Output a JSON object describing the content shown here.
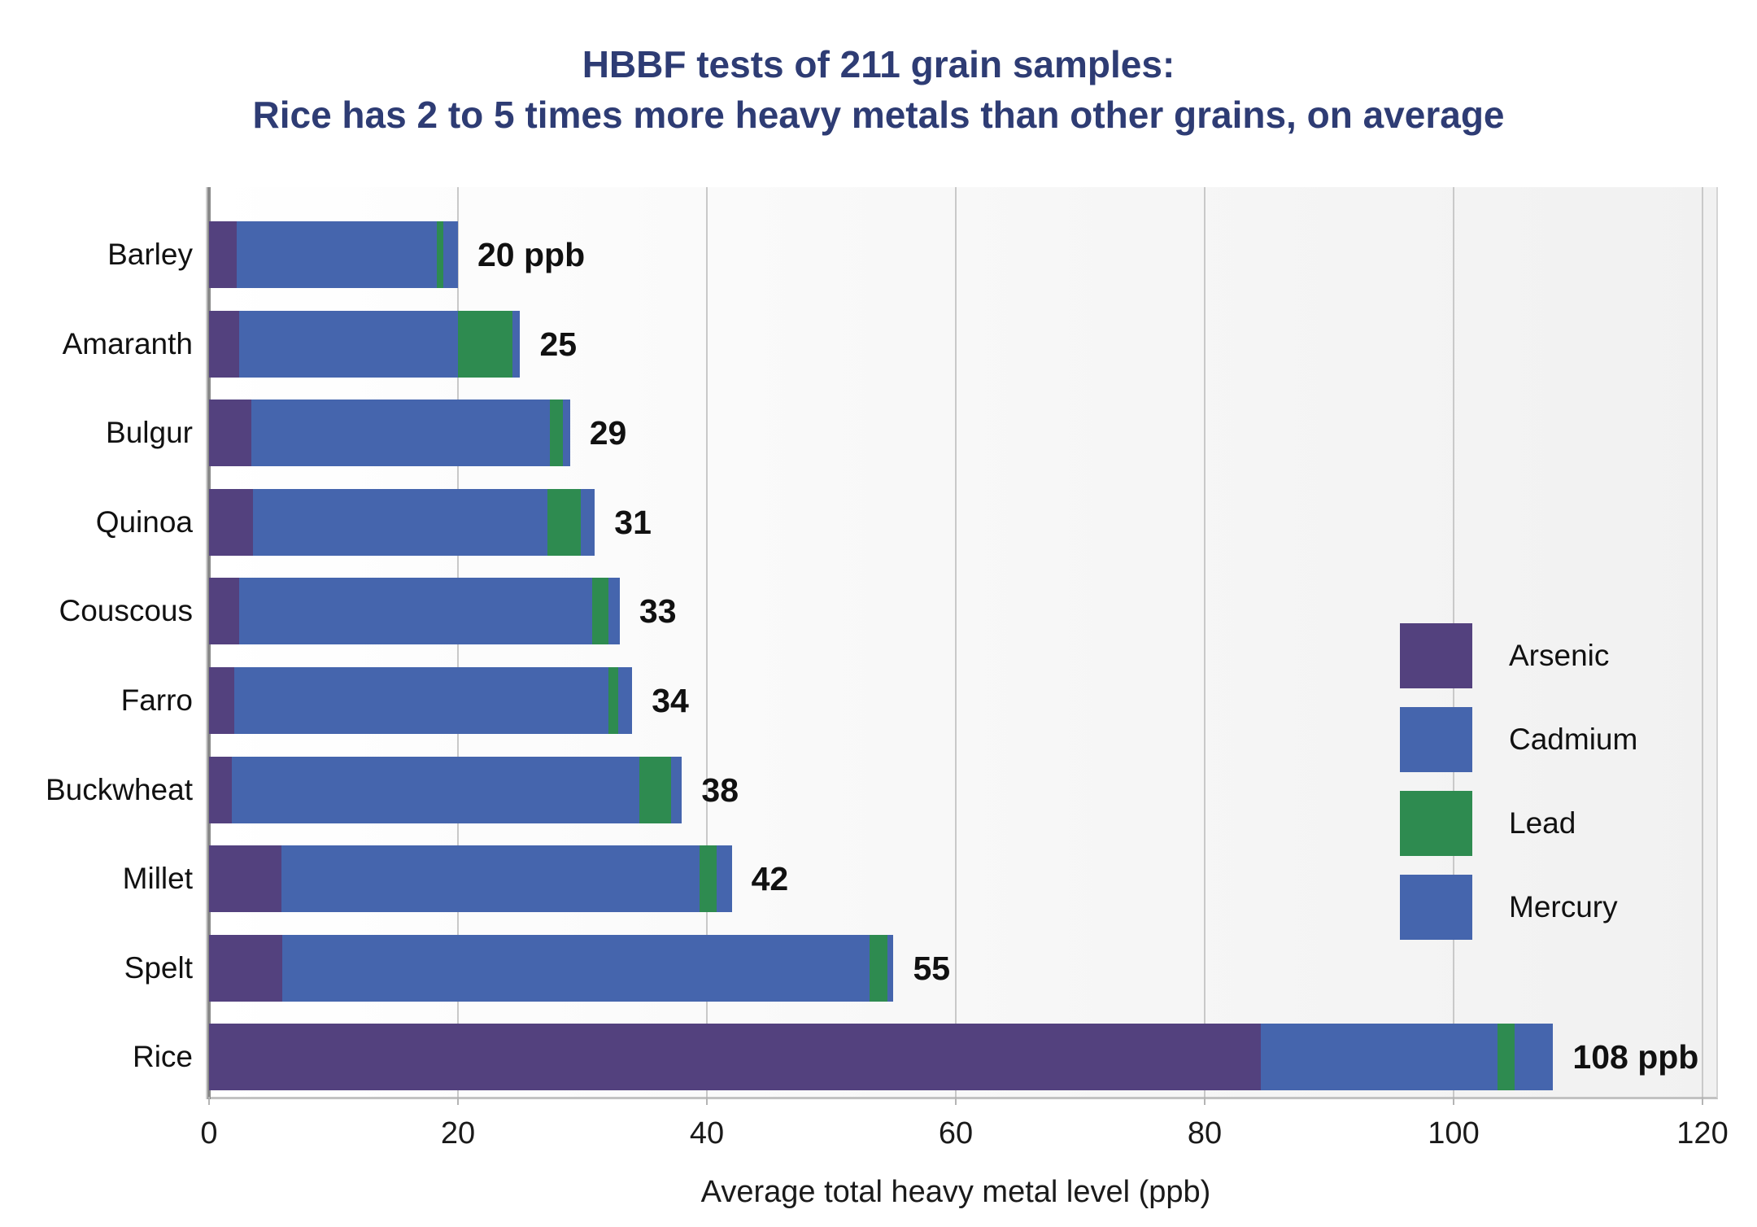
{
  "title": {
    "line1": "HBBF tests of 211 grain samples:",
    "line2": "Rice has 2 to 5 times more heavy metals than other grains, on average"
  },
  "chart_data": {
    "type": "bar",
    "orientation": "horizontal",
    "stacked": true,
    "title": "HBBF tests of 211 grain samples: Rice has 2 to 5 times more heavy metals than other grains, on average",
    "categories": [
      "Barley",
      "Amaranth",
      "Bulgur",
      "Quinoa",
      "Couscous",
      "Farro",
      "Buckwheat",
      "Millet",
      "Spelt",
      "Rice"
    ],
    "series": [
      {
        "name": "Arsenic",
        "color": "#53417e",
        "values": [
          2.2,
          2.4,
          3.4,
          3.5,
          2.4,
          2.0,
          1.8,
          5.8,
          5.9,
          84.5
        ]
      },
      {
        "name": "Cadmium",
        "color": "#4565ad",
        "values": [
          16.1,
          17.6,
          24.0,
          23.7,
          28.4,
          30.1,
          32.8,
          33.6,
          47.2,
          19.0
        ]
      },
      {
        "name": "Lead",
        "color": "#2e8b50",
        "values": [
          0.5,
          4.4,
          1.0,
          2.7,
          1.3,
          0.8,
          2.5,
          1.4,
          1.4,
          1.4
        ]
      },
      {
        "name": "Mercury",
        "color": "#4565ad",
        "values": [
          1.2,
          0.6,
          0.6,
          1.1,
          0.9,
          1.1,
          0.9,
          1.2,
          0.5,
          3.1
        ]
      }
    ],
    "totals": [
      20,
      25,
      29,
      31,
      33,
      34,
      38,
      42,
      55,
      108
    ],
    "total_labels": [
      "20 ppb",
      "25",
      "29",
      "31",
      "33",
      "34",
      "38",
      "42",
      "55",
      "108 ppb"
    ],
    "xlabel": "Average total heavy metal level (ppb)",
    "ylabel": "",
    "xlim": [
      0,
      120
    ],
    "xticks": [
      0,
      20,
      40,
      60,
      80,
      100,
      120
    ],
    "grid": true,
    "legend": {
      "position": "middle-right",
      "entries": [
        "Arsenic",
        "Cadmium",
        "Lead",
        "Mercury"
      ]
    }
  },
  "colors": {
    "title_text": "#2e3c74",
    "arsenic": "#53417e",
    "cadmium": "#4565ad",
    "lead": "#2e8b50",
    "mercury": "#4565ad",
    "gridline": "#c9c9c9",
    "label_text": "#111111"
  }
}
